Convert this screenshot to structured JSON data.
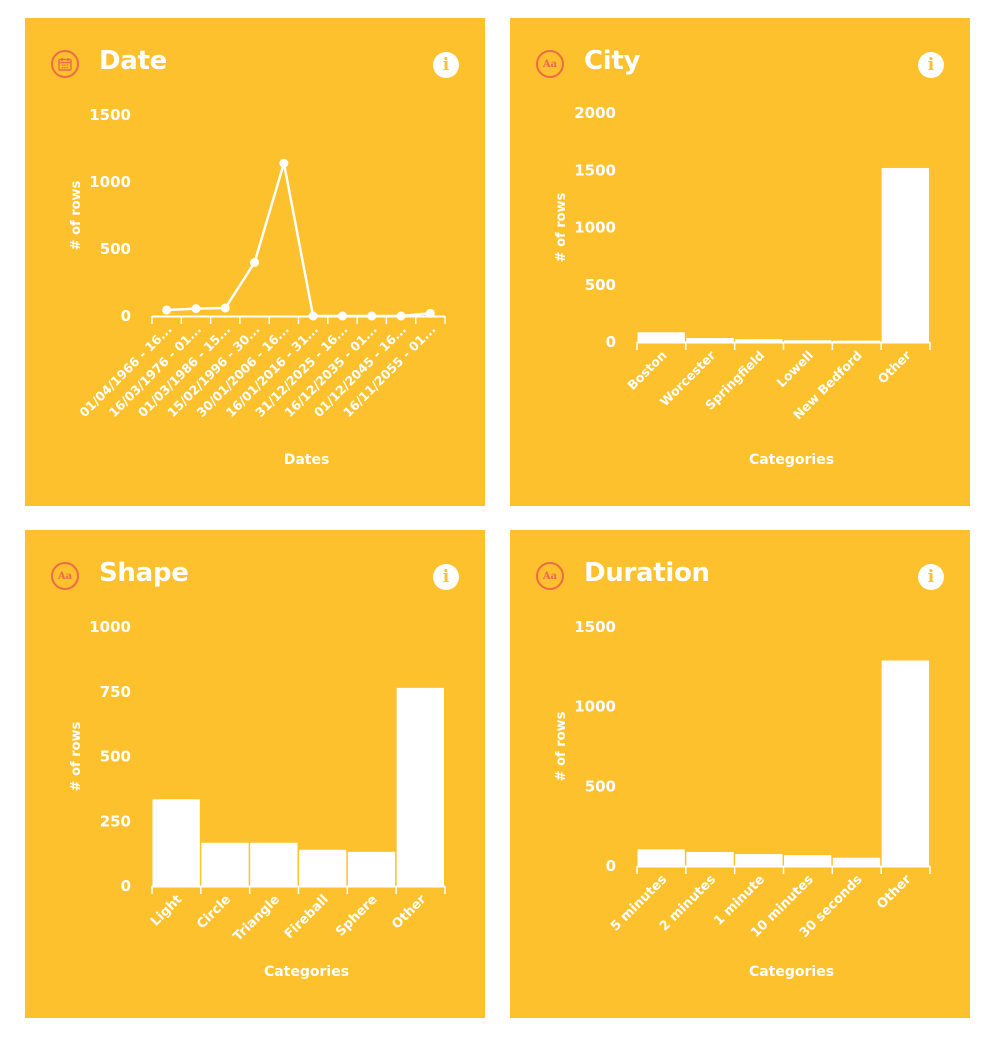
{
  "theme": {
    "panel_bg": "#FCC12D",
    "ink": "#FFFFFF",
    "icon_accent": "#EE6A48"
  },
  "panels": [
    {
      "title": "Date",
      "icon": "calendar-icon",
      "info_icon": "info-icon",
      "chart_data": {
        "type": "line",
        "title": "Date",
        "xlabel": "Dates",
        "ylabel": "# of rows",
        "ylim": [
          0,
          1500
        ],
        "yticks": [
          0,
          500,
          1000,
          1500
        ],
        "categories": [
          "01/04/1966 - 16...",
          "16/03/1976 - 01...",
          "01/03/1986 - 15...",
          "15/02/1996 - 30...",
          "30/01/2006 - 16...",
          "16/01/2016 - 31...",
          "31/12/2025 - 16...",
          "16/12/2035 - 01...",
          "01/12/2045 - 16...",
          "16/11/2055 - 01..."
        ],
        "values": [
          45,
          55,
          60,
          400,
          1140,
          0,
          0,
          0,
          0,
          20
        ],
        "grid": false
      }
    },
    {
      "title": "City",
      "icon": "text-type-icon",
      "icon_text": "Aa",
      "info_icon": "info-icon",
      "chart_data": {
        "type": "bar",
        "title": "City",
        "xlabel": "Categories",
        "ylabel": "# of rows",
        "ylim": [
          0,
          2000
        ],
        "yticks": [
          0,
          500,
          1000,
          1500,
          2000
        ],
        "categories": [
          "Boston",
          "Worcester",
          "Springfield",
          "Lowell",
          "New Bedford",
          "Other"
        ],
        "values": [
          85,
          35,
          25,
          15,
          12,
          1520
        ],
        "grid": false
      }
    },
    {
      "title": "Shape",
      "icon": "text-type-icon",
      "icon_text": "Aa",
      "info_icon": "info-icon",
      "chart_data": {
        "type": "bar",
        "title": "Shape",
        "xlabel": "Categories",
        "ylabel": "# of rows",
        "ylim": [
          0,
          1000
        ],
        "yticks": [
          0,
          250,
          500,
          750,
          1000
        ],
        "categories": [
          "Light",
          "Circle",
          "Triangle",
          "Fireball",
          "Sphere",
          "Other"
        ],
        "values": [
          335,
          167,
          167,
          140,
          132,
          765
        ],
        "grid": false
      }
    },
    {
      "title": "Duration",
      "icon": "text-type-icon",
      "icon_text": "Aa",
      "info_icon": "info-icon",
      "chart_data": {
        "type": "bar",
        "title": "Duration",
        "xlabel": "Categories",
        "ylabel": "# of rows",
        "ylim": [
          0,
          1500
        ],
        "yticks": [
          0,
          500,
          1000,
          1500
        ],
        "categories": [
          "5 minutes",
          "2 minutes",
          "1 minute",
          "10 minutes",
          "30 seconds",
          "Other"
        ],
        "values": [
          105,
          88,
          75,
          68,
          52,
          1290
        ],
        "grid": false
      }
    }
  ]
}
